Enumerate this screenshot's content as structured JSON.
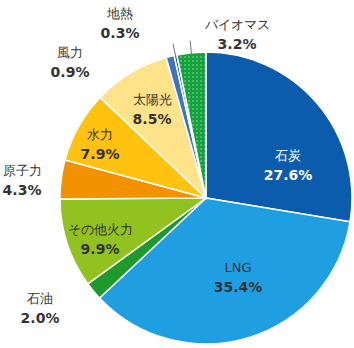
{
  "chart_data": {
    "type": "pie",
    "categories": [
      "石炭",
      "LNG",
      "石油",
      "その他火力",
      "原子力",
      "水力",
      "太陽光",
      "風力",
      "地熱",
      "バイオマス"
    ],
    "values": [
      27.6,
      35.4,
      2.0,
      9.9,
      4.3,
      7.9,
      8.5,
      0.9,
      0.3,
      3.2
    ],
    "value_labels": [
      "27.6%",
      "35.4%",
      "2.0%",
      "9.9%",
      "4.3%",
      "7.9%",
      "8.5%",
      "0.9%",
      "0.3%",
      "3.2%"
    ],
    "colors": [
      "#0b5cad",
      "#1f9fe2",
      "#1e9a2c",
      "#92c21f",
      "#f39200",
      "#ffc20e",
      "#ffe38a",
      "#3c74c4",
      "#2a4f8f",
      "#13a33b"
    ],
    "data_labels": true
  }
}
